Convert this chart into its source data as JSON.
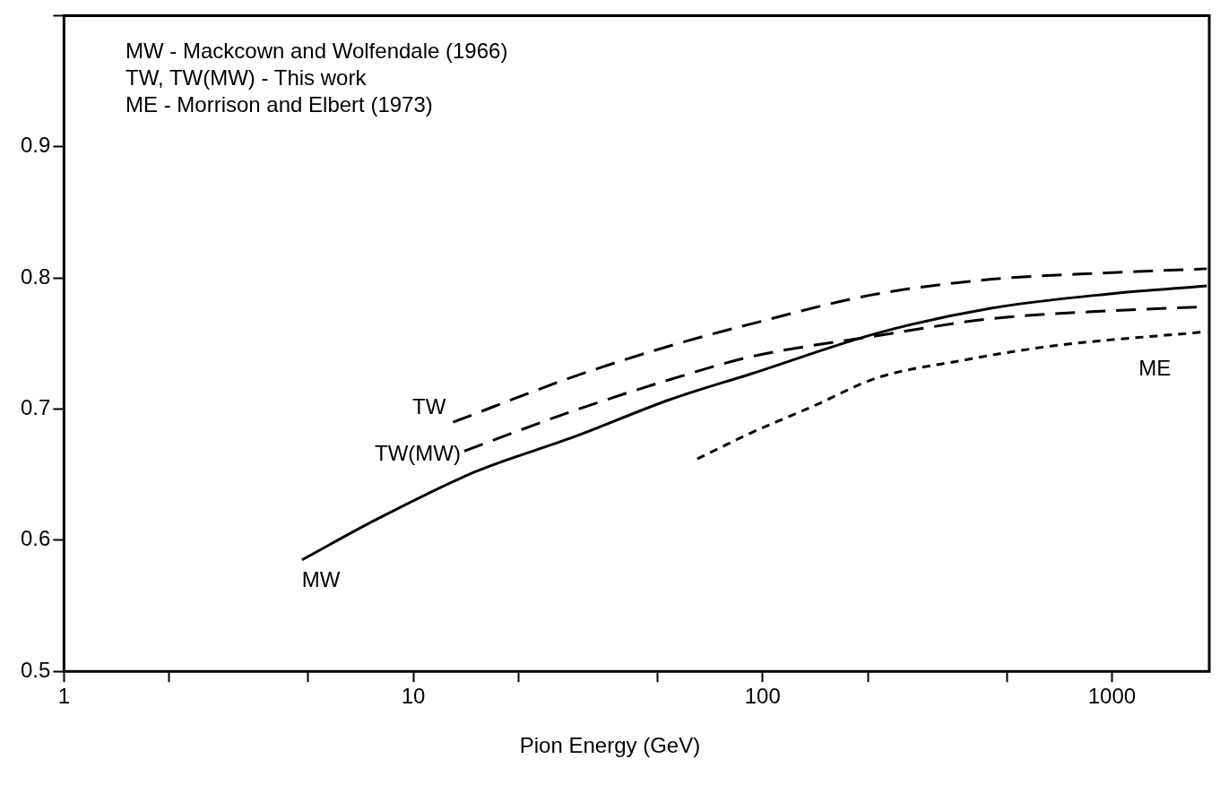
{
  "chart_data": {
    "type": "line",
    "xlabel": "Pion Energy (GeV)",
    "annotations": [
      "MW - Mackcown and Wolfendale (1966)",
      "TW, TW(MW) - This work",
      "ME - Morrison and Elbert (1973)"
    ],
    "log": "x",
    "grid": false,
    "legend": false,
    "marker": "none",
    "xlim": [
      1,
      1900
    ],
    "xticks": [
      1,
      {
        "value": 2,
        "label": null
      },
      {
        "value": 5,
        "label": null
      },
      10,
      {
        "value": 20,
        "label": null
      },
      {
        "value": 50,
        "label": null
      },
      100,
      {
        "value": 200,
        "label": null
      },
      {
        "value": 500,
        "label": null
      },
      1000
    ],
    "ylim": [
      0.5,
      1.0
    ],
    "yticks": [
      0.5,
      0.6,
      0.7,
      0.8,
      0.9,
      {
        "value": 1.0,
        "label": null
      }
    ],
    "series": [
      {
        "name": "MW",
        "color": "#000000",
        "line_style": "solid",
        "x": [
          4.8,
          8,
          15,
          29,
          54,
          93,
          214,
          454,
          1000,
          1870
        ],
        "values": [
          0.585,
          0.617,
          0.652,
          0.679,
          0.707,
          0.727,
          0.758,
          0.777,
          0.788,
          0.794
        ]
      },
      {
        "name": "TW",
        "color": "#000000",
        "line_style": "dashed",
        "x": [
          13,
          29,
          54,
          93,
          205,
          454,
          1000,
          1870
        ],
        "values": [
          0.69,
          0.725,
          0.748,
          0.765,
          0.787,
          0.799,
          0.804,
          0.807
        ]
      },
      {
        "name": "TW(MW)",
        "color": "#000000",
        "line_style": "dashed",
        "x": [
          14,
          29,
          60,
          93,
          214,
          454,
          1000,
          1870
        ],
        "values": [
          0.668,
          0.699,
          0.726,
          0.74,
          0.756,
          0.769,
          0.775,
          0.778
        ]
      },
      {
        "name": "ME",
        "color": "#000000",
        "line_style": "dotted",
        "x": [
          65,
          93,
          139,
          214,
          371,
          671,
          1870
        ],
        "values": [
          0.662,
          0.682,
          0.702,
          0.724,
          0.737,
          0.748,
          0.759
        ]
      }
    ]
  }
}
